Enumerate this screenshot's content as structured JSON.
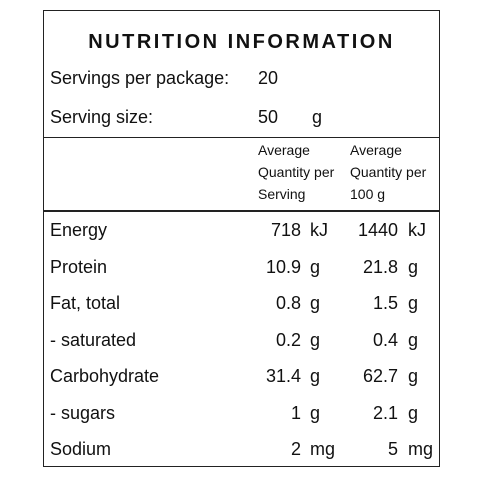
{
  "header": {
    "title": "NUTRITION INFORMATION"
  },
  "servings_per_package": {
    "label": "Servings per package:",
    "value": 20
  },
  "serving_size": {
    "label": "Serving size:",
    "value": 50,
    "unit": "g"
  },
  "columns": [
    [
      "Average",
      "Quantity per",
      "Serving"
    ],
    [
      "Average",
      "Quantity per",
      "100 g"
    ]
  ],
  "rows": [
    {
      "name": "Energy",
      "per_serving": {
        "value": 718,
        "unit": "kJ"
      },
      "per_100g": {
        "value": 1440,
        "unit": "kJ"
      }
    },
    {
      "name": "Protein",
      "per_serving": {
        "value": 10.9,
        "unit": "g"
      },
      "per_100g": {
        "value": 21.8,
        "unit": "g"
      }
    },
    {
      "name": "Fat, total",
      "per_serving": {
        "value": 0.8,
        "unit": "g"
      },
      "per_100g": {
        "value": 1.5,
        "unit": "g"
      }
    },
    {
      "name": "- saturated",
      "per_serving": {
        "value": 0.2,
        "unit": "g"
      },
      "per_100g": {
        "value": 0.4,
        "unit": "g"
      }
    },
    {
      "name": "Carbohydrate",
      "per_serving": {
        "value": 31.4,
        "unit": "g"
      },
      "per_100g": {
        "value": 62.7,
        "unit": "g"
      }
    },
    {
      "name": "- sugars",
      "per_serving": {
        "value": 1,
        "unit": "g"
      },
      "per_100g": {
        "value": 2.1,
        "unit": "g"
      }
    },
    {
      "name": "Sodium",
      "per_serving": {
        "value": 2,
        "unit": "mg"
      },
      "per_100g": {
        "value": 5,
        "unit": "mg"
      }
    }
  ]
}
